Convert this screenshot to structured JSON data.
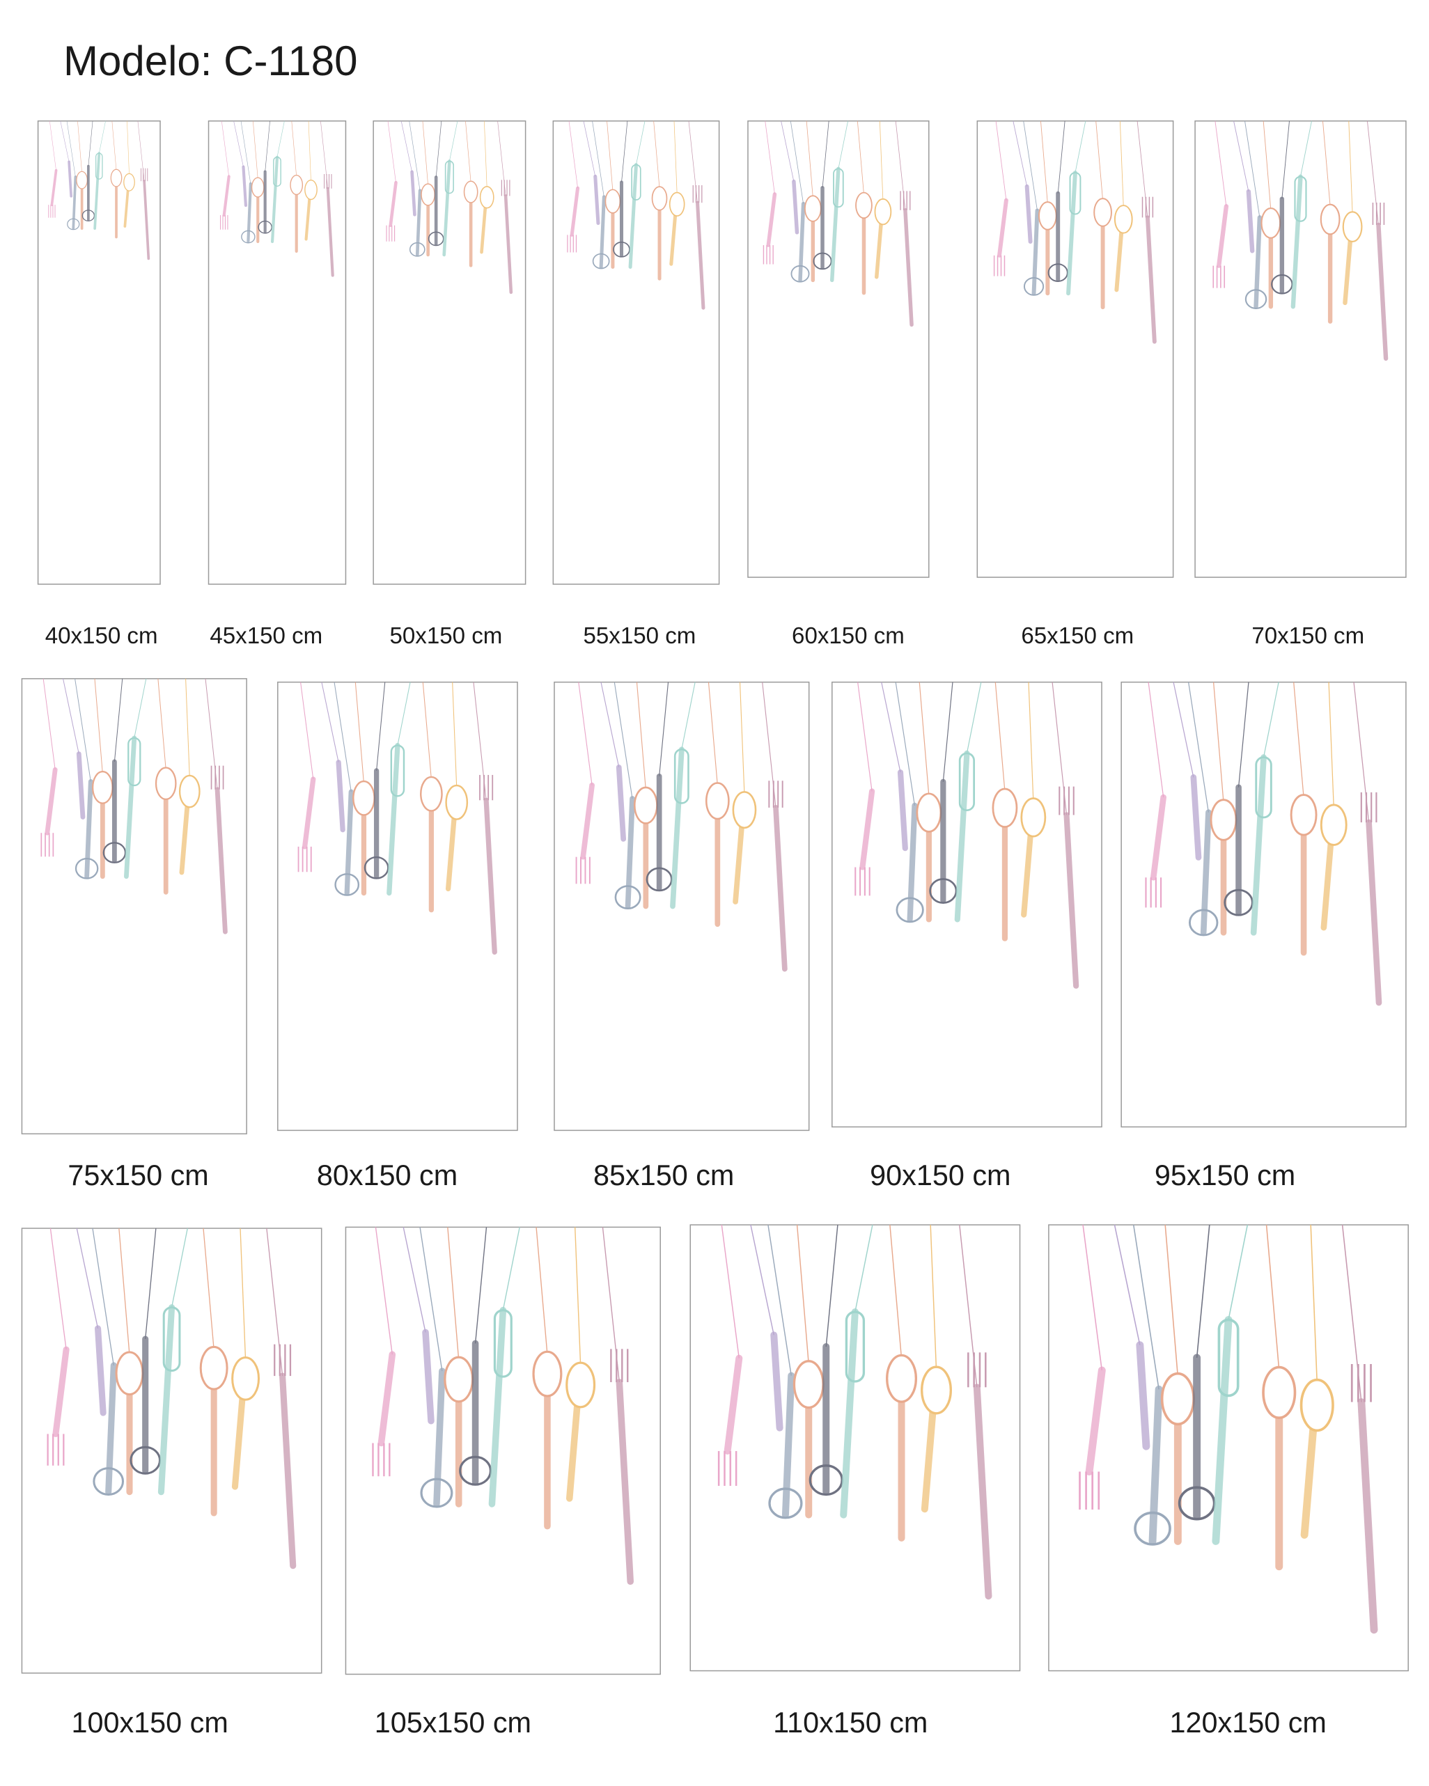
{
  "header": {
    "title": "Modelo: C-1180"
  },
  "panels": [
    {
      "label": "40x150 cm"
    },
    {
      "label": "45x150 cm"
    },
    {
      "label": "50x150 cm"
    },
    {
      "label": "55x150 cm"
    },
    {
      "label": "60x150 cm"
    },
    {
      "label": "65x150 cm"
    },
    {
      "label": "70x150 cm"
    },
    {
      "label": "75x150 cm"
    },
    {
      "label": "80x150 cm"
    },
    {
      "label": "85x150 cm"
    },
    {
      "label": "90x150 cm"
    },
    {
      "label": "95x150 cm"
    },
    {
      "label": "100x150 cm"
    },
    {
      "label": "105x150 cm"
    },
    {
      "label": "110x150 cm"
    },
    {
      "label": "120x150 cm"
    }
  ]
}
